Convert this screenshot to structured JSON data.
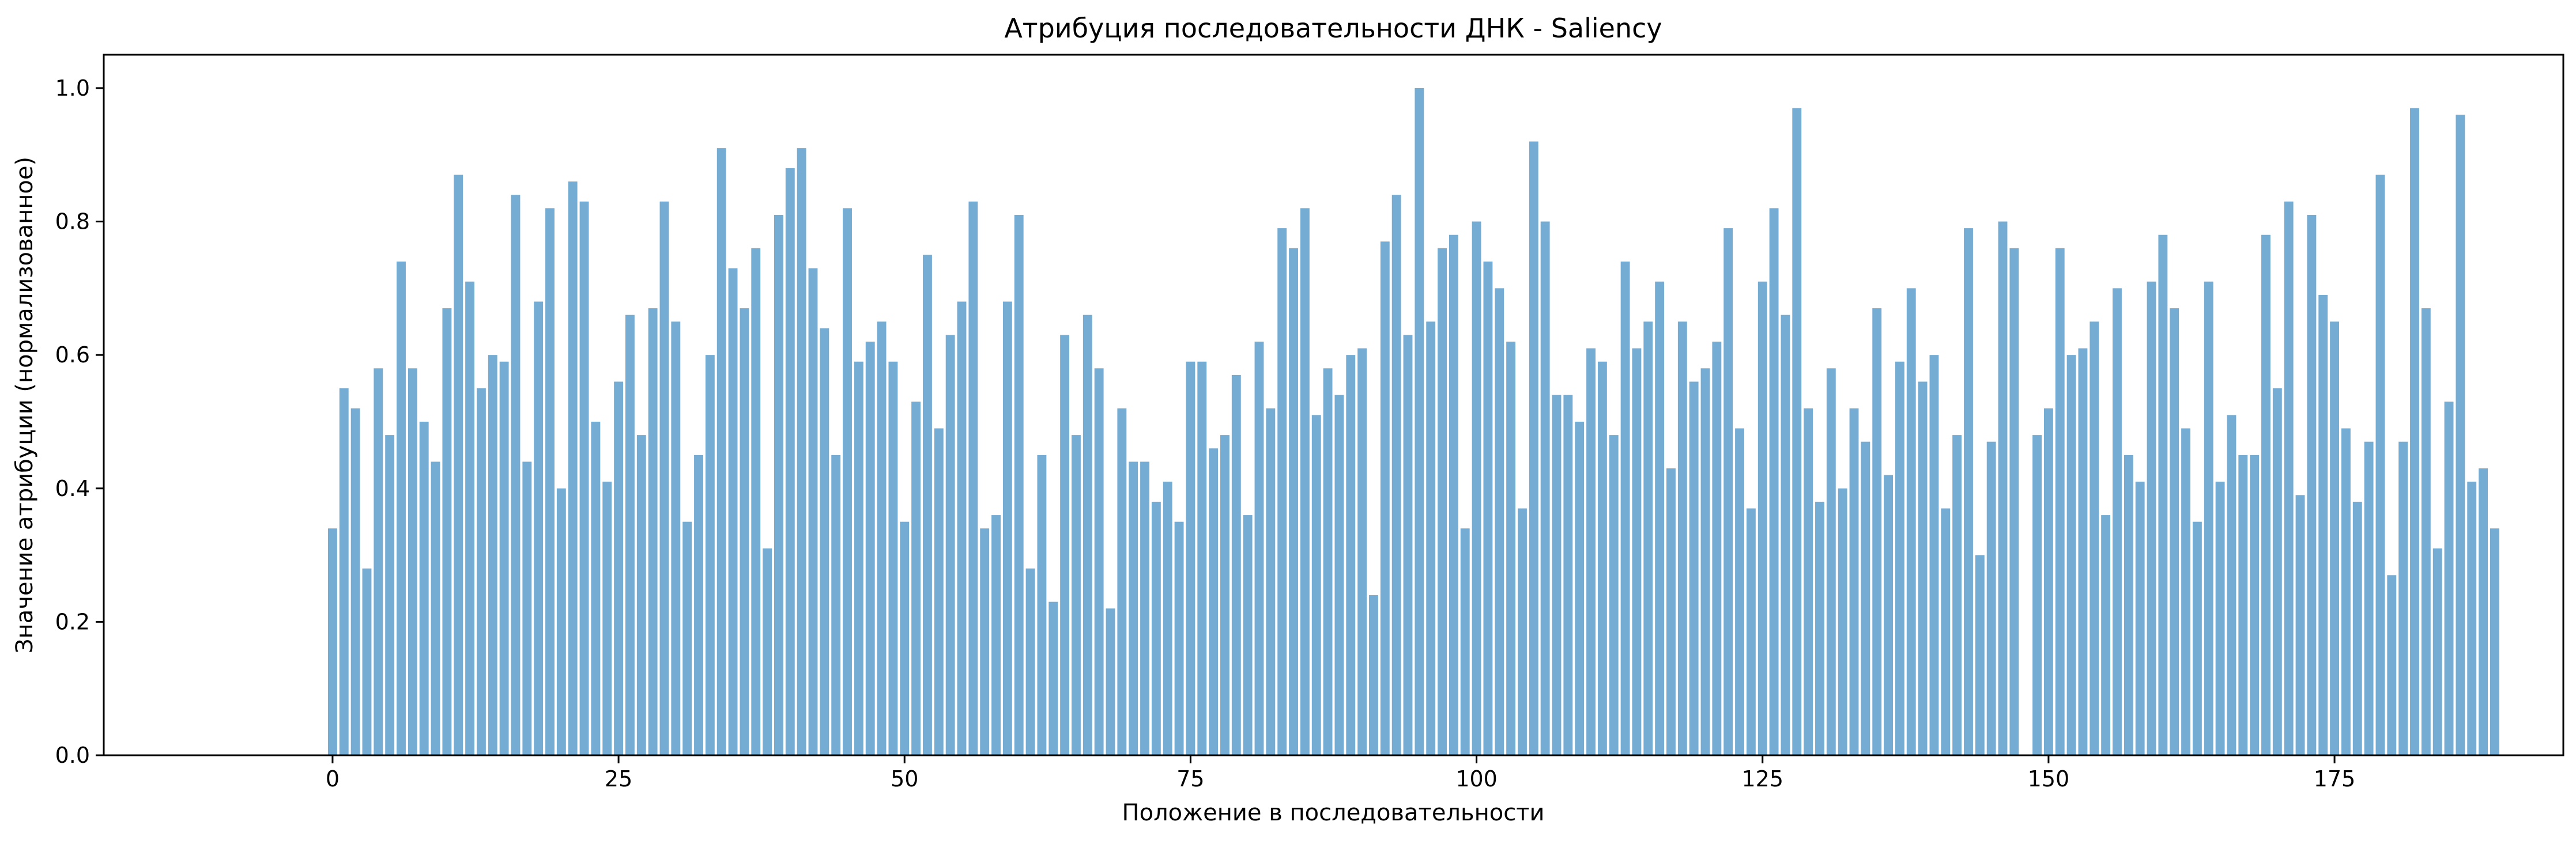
{
  "chart_data": {
    "type": "bar",
    "title": "Атрибуция последовательности ДНК - Saliency",
    "xlabel": "Положение в последовательности",
    "ylabel": "Значение атрибуции (нормализованное)",
    "xlim": [
      -20,
      195
    ],
    "ylim": [
      0,
      1.05
    ],
    "xticks": [
      0,
      25,
      50,
      75,
      100,
      125,
      150,
      175
    ],
    "yticks": [
      0.0,
      0.2,
      0.4,
      0.6,
      0.8,
      1.0
    ],
    "ytick_labels": [
      "0.0",
      "0.2",
      "0.4",
      "0.6",
      "0.8",
      "1.0"
    ],
    "bar_color": "#75acd4",
    "grid": false,
    "x": [
      0,
      1,
      2,
      3,
      4,
      5,
      6,
      7,
      8,
      9,
      10,
      11,
      12,
      13,
      14,
      15,
      16,
      17,
      18,
      19,
      20,
      21,
      22,
      23,
      24,
      25,
      26,
      27,
      28,
      29,
      30,
      31,
      32,
      33,
      34,
      35,
      36,
      37,
      38,
      39,
      40,
      41,
      42,
      43,
      44,
      45,
      46,
      47,
      48,
      49,
      50,
      51,
      52,
      53,
      54,
      55,
      56,
      57,
      58,
      59,
      60,
      61,
      62,
      63,
      64,
      65,
      66,
      67,
      68,
      69,
      70,
      71,
      72,
      73,
      74,
      75,
      76,
      77,
      78,
      79,
      80,
      81,
      82,
      83,
      84,
      85,
      86,
      87,
      88,
      89,
      90,
      91,
      92,
      93,
      94,
      95,
      96,
      97,
      98,
      99,
      100,
      101,
      102,
      103,
      104,
      105,
      106,
      107,
      108,
      109,
      110,
      111,
      112,
      113,
      114,
      115,
      116,
      117,
      118,
      119,
      120,
      121,
      122,
      123,
      124,
      125,
      126,
      127,
      128,
      129,
      130,
      131,
      132,
      133,
      134,
      135,
      136,
      137,
      138,
      139,
      140,
      141,
      142,
      143,
      144,
      145,
      146,
      147,
      148,
      149,
      150,
      151,
      152,
      153,
      154,
      155,
      156,
      157,
      158,
      159,
      160,
      161,
      162,
      163,
      164,
      165,
      166,
      167,
      168,
      169,
      170,
      171,
      172,
      173,
      174,
      175,
      176,
      177,
      178,
      179,
      180,
      181,
      182,
      183,
      184,
      185,
      186,
      187,
      188,
      189
    ],
    "values": [
      0.34,
      0.55,
      0.52,
      0.28,
      0.58,
      0.48,
      0.74,
      0.58,
      0.5,
      0.44,
      0.67,
      0.87,
      0.71,
      0.55,
      0.6,
      0.59,
      0.84,
      0.44,
      0.68,
      0.82,
      0.4,
      0.86,
      0.83,
      0.5,
      0.41,
      0.56,
      0.66,
      0.48,
      0.67,
      0.83,
      0.65,
      0.35,
      0.45,
      0.6,
      0.91,
      0.73,
      0.67,
      0.76,
      0.31,
      0.81,
      0.88,
      0.91,
      0.73,
      0.64,
      0.45,
      0.82,
      0.59,
      0.62,
      0.65,
      0.59,
      0.35,
      0.53,
      0.75,
      0.49,
      0.63,
      0.68,
      0.83,
      0.34,
      0.36,
      0.68,
      0.81,
      0.28,
      0.45,
      0.23,
      0.63,
      0.48,
      0.66,
      0.58,
      0.22,
      0.52,
      0.44,
      0.44,
      0.38,
      0.41,
      0.35,
      0.59,
      0.59,
      0.46,
      0.48,
      0.57,
      0.36,
      0.62,
      0.52,
      0.79,
      0.76,
      0.82,
      0.51,
      0.58,
      0.54,
      0.6,
      0.61,
      0.24,
      0.77,
      0.84,
      0.63,
      1.0,
      0.65,
      0.76,
      0.78,
      0.34,
      0.8,
      0.74,
      0.7,
      0.62,
      0.37,
      0.92,
      0.8,
      0.54,
      0.54,
      0.5,
      0.61,
      0.59,
      0.48,
      0.74,
      0.61,
      0.65,
      0.71,
      0.43,
      0.65,
      0.56,
      0.58,
      0.62,
      0.79,
      0.49,
      0.37,
      0.71,
      0.82,
      0.66,
      0.97,
      0.52,
      0.38,
      0.58,
      0.4,
      0.52,
      0.47,
      0.67,
      0.42,
      0.59,
      0.7,
      0.56,
      0.6,
      0.37,
      0.48,
      0.79,
      0.3,
      0.47,
      0.8,
      0.76,
      0.0,
      0.48,
      0.52,
      0.76,
      0.6,
      0.61,
      0.65,
      0.36,
      0.7,
      0.45,
      0.41,
      0.71,
      0.78,
      0.67,
      0.49,
      0.35,
      0.71,
      0.41,
      0.51,
      0.45,
      0.45,
      0.78,
      0.55,
      0.83,
      0.39,
      0.81,
      0.69,
      0.65,
      0.49,
      0.38,
      0.47,
      0.87,
      0.27,
      0.47,
      0.97,
      0.67,
      0.31,
      0.53,
      0.96,
      0.41,
      0.43,
      0.34
    ]
  }
}
